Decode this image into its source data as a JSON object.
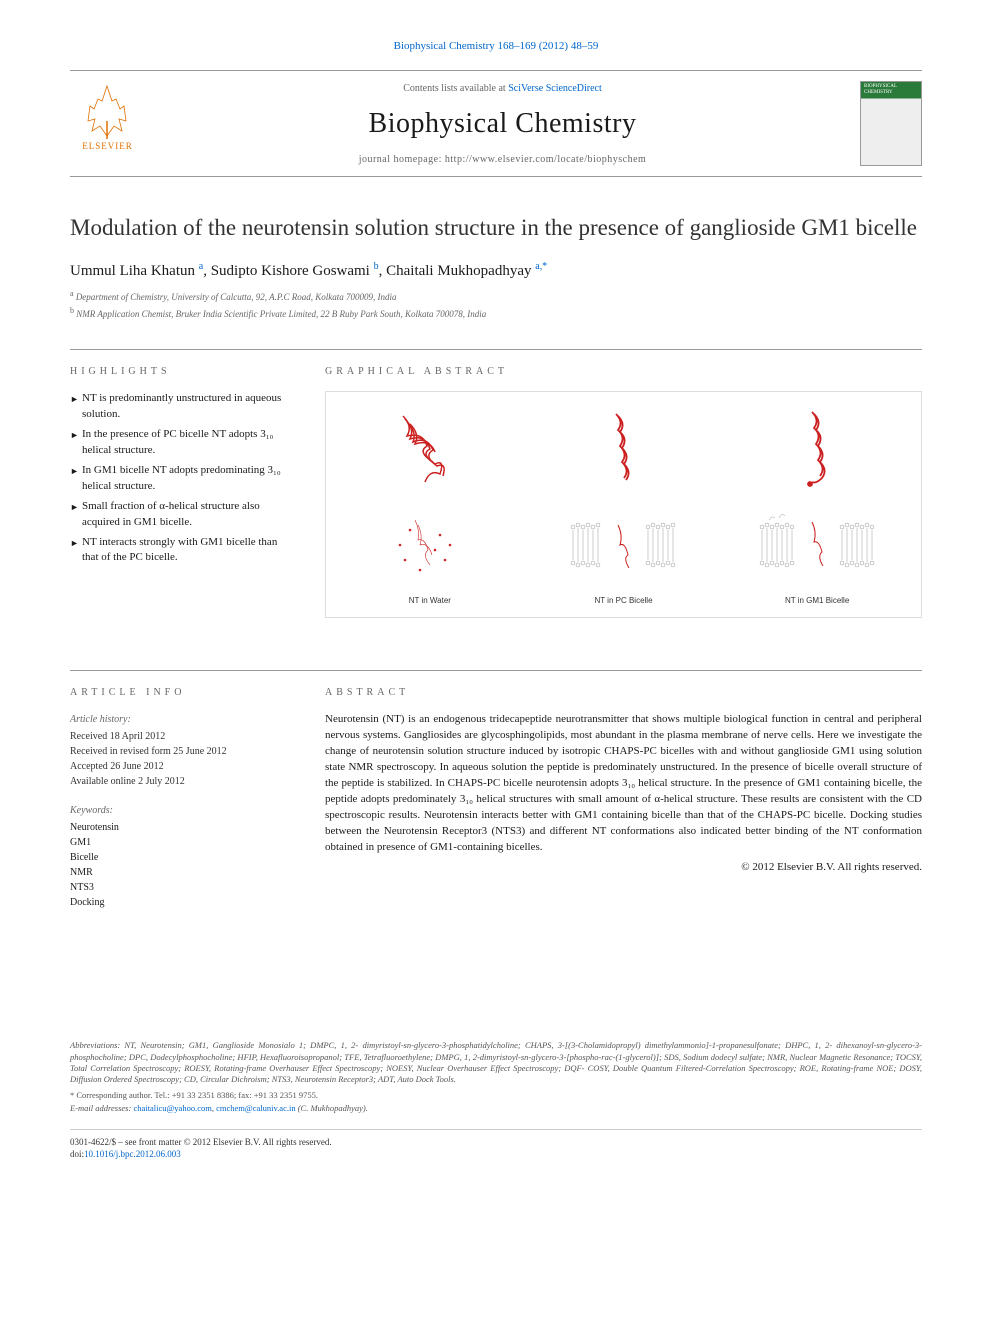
{
  "masthead_citation": "Biophysical Chemistry 168–169 (2012) 48–59",
  "masthead_link_prefix": "",
  "banner": {
    "contents_text": "Contents lists available at ",
    "contents_link": "SciVerse ScienceDirect",
    "journal_name": "Biophysical Chemistry",
    "homepage_label": "journal homepage: http://www.elsevier.com/locate/biophyschem",
    "elsevier_label": "ELSEVIER",
    "cover_label": "BIOPHYSICAL CHEMISTRY"
  },
  "title": "Modulation of the neurotensin solution structure in the presence of ganglioside GM1 bicelle",
  "authors_html": "Ummul Liha Khatun <sup>a</sup>, Sudipto Kishore Goswami <sup>b</sup>, Chaitali Mukhopadhyay <sup>a,*</sup>",
  "affiliations": [
    {
      "sup": "a",
      "text": "Department of Chemistry, University of Calcutta, 92, A.P.C Road, Kolkata 700009, India"
    },
    {
      "sup": "b",
      "text": "NMR Application Chemist, Bruker India Scientific Private Limited, 22 B Ruby Park South, Kolkata 700078, India"
    }
  ],
  "highlights_heading": "HIGHLIGHTS",
  "highlights": [
    "NT is predominantly unstructured in aqueous solution.",
    "In the presence of PC bicelle NT adopts 3₁₀ helical structure.",
    "In GM1 bicelle NT adopts predominating 3₁₀ helical structure.",
    "Small fraction of α-helical structure also acquired in GM1 bicelle.",
    "NT interacts strongly with GM1 bicelle than that of the PC bicelle."
  ],
  "graphical_heading": "GRAPHICAL ABSTRACT",
  "ga_labels": {
    "water": "NT in Water",
    "pc": "NT in PC Bicelle",
    "gm1": "NT in GM1 Bicelle"
  },
  "article_info_heading": "ARTICLE INFO",
  "article_history_heading": "Article history:",
  "history": {
    "received": "Received 18 April 2012",
    "revised": "Received in revised form 25 June 2012",
    "accepted": "Accepted 26 June 2012",
    "online": "Available online 2 July 2012"
  },
  "keywords_heading": "Keywords:",
  "keywords": [
    "Neurotensin",
    "GM1",
    "Bicelle",
    "NMR",
    "NTS3",
    "Docking"
  ],
  "abstract_heading": "ABSTRACT",
  "abstract_text": "Neurotensin (NT) is an endogenous tridecapeptide neurotransmitter that shows multiple biological function in central and peripheral nervous systems. Gangliosides are glycosphingolipids, most abundant in the plasma membrane of nerve cells. Here we investigate the change of neurotensin solution structure induced by isotropic CHAPS-PC bicelles with and without ganglioside GM1 using solution state NMR spectroscopy. In aqueous solution the peptide is predominately unstructured. In the presence of bicelle overall structure of the peptide is stabilized. In CHAPS-PC bicelle neurotensin adopts 3₁₀ helical structure. In the presence of GM1 containing bicelle, the peptide adopts predominately 3₁₀ helical structures with small amount of α-helical structure. These results are consistent with the CD spectroscopic results. Neurotensin interacts better with GM1 containing bicelle than that of the CHAPS-PC bicelle. Docking studies between the Neurotensin Receptor3 (NTS3) and different NT conformations also indicated better binding of the NT conformation obtained in presence of GM1-containing bicelles.",
  "copyright": "© 2012 Elsevier B.V. All rights reserved.",
  "footer": {
    "abbrev": "Abbreviations: NT, Neurotensin; GM1, Ganglioside Monosialo 1; DMPC, 1, 2- dimyristoyl-sn-glycero-3-phosphatidylcholine; CHAPS, 3-[(3-Cholamidopropyl) dimethylammonio]-1-propanesulfonate; DHPC, 1, 2- dihexanoyl-sn-glycero-3-phosphocholine; DPC, Dodecylphosphocholine; HFIP, Hexafluoroisopropanol; TFE, Tetrafluoroethylene; DMPG, 1, 2-dimyristoyl-sn-glycero-3-[phospho-rac-(1-glycerol)]; SDS, Sodium dodecyl sulfate; NMR, Nuclear Magnetic Resonance; TOCSY, Total Correlation Spectroscopy; ROESY, Rotating-frame Overhauser Effect Spectroscopy; NOESY, Nuclear Overhauser Effect Spectroscopy; DQF- COSY, Double Quantum Filtered-Correlation Spectroscopy; ROE, Rotating-frame NOE; DOSY, Diffusion Ordered Spectroscopy; CD, Circular Dichroism; NTS3, Neurotensin Receptor3; ADT, Auto Dock Tools.",
    "corr": "* Corresponding author. Tel.: +91 33 2351 8386; fax: +91 33 2351 9755.",
    "emails_prefix": "E-mail addresses: ",
    "email1": "chaitalicu@yahoo.com",
    "email2": "cmchem@caluniv.ac.in",
    "emails_suffix": " (C. Mukhopadhyay).",
    "issn": "0301-4622/$ – see front matter © 2012 Elsevier B.V. All rights reserved.",
    "doi_prefix": "doi:",
    "doi": "10.1016/j.bpc.2012.06.003"
  },
  "colors": {
    "link": "#0066cc",
    "elsevier_orange": "#e07000",
    "structure_red": "#cc2020",
    "bicelle_grey": "#999999",
    "cover_green": "#2a7a3a"
  }
}
